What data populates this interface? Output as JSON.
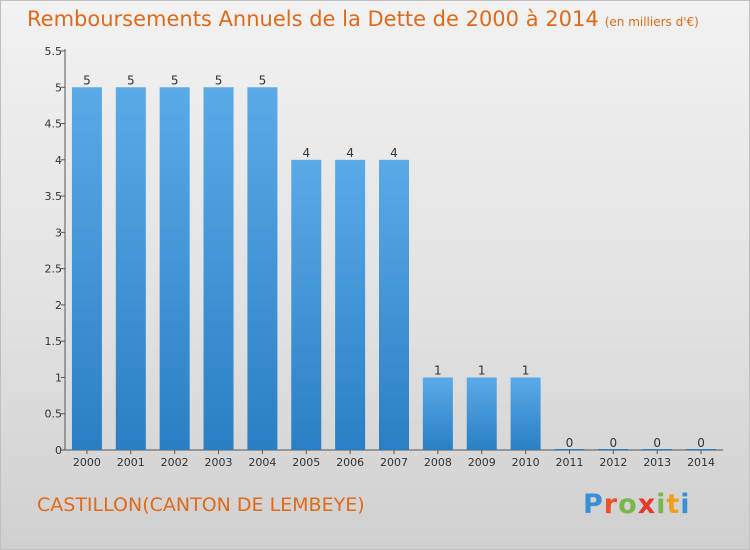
{
  "title": "Remboursements Annuels de la Dette de 2000 à 2014",
  "title_unit": "(en milliers d'€)",
  "footer_label": "CASTILLON(CANTON DE LEMBEYE)",
  "logo": {
    "letters": [
      "P",
      "r",
      "o",
      "x",
      "i",
      "t",
      "i"
    ],
    "colors": [
      "#3b8fd6",
      "#e8542a",
      "#7bb64a",
      "#e33a2a",
      "#7bb64a",
      "#f0a020",
      "#3b8fd6"
    ]
  },
  "colors": {
    "bar_light": "#5aaae8",
    "bar_dark": "#2a7fc4",
    "axis": "#555555",
    "text": "#333333",
    "accent": "#e06a19"
  },
  "chart_data": {
    "type": "bar",
    "categories": [
      "2000",
      "2001",
      "2002",
      "2003",
      "2004",
      "2005",
      "2006",
      "2007",
      "2008",
      "2009",
      "2010",
      "2011",
      "2012",
      "2013",
      "2014"
    ],
    "values": [
      5,
      5,
      5,
      5,
      5,
      4,
      4,
      4,
      1,
      1,
      1,
      0,
      0,
      0,
      0
    ],
    "value_labels": [
      "5",
      "5",
      "5",
      "5",
      "5",
      "4",
      "4",
      "4",
      "1",
      "1",
      "1",
      "0",
      "0",
      "0",
      "0"
    ],
    "ylim": [
      0,
      5.5
    ],
    "yticks": [
      0,
      0.5,
      1,
      1.5,
      2,
      2.5,
      3,
      3.5,
      4,
      4.5,
      5,
      5.5
    ],
    "ytick_labels": [
      "0",
      "0.5",
      "1",
      "1.5",
      "2",
      "2.5",
      "3",
      "3.5",
      "4",
      "4.5",
      "5",
      "5.5"
    ],
    "grid": false,
    "legend": "none",
    "xlabel": "",
    "ylabel": ""
  }
}
